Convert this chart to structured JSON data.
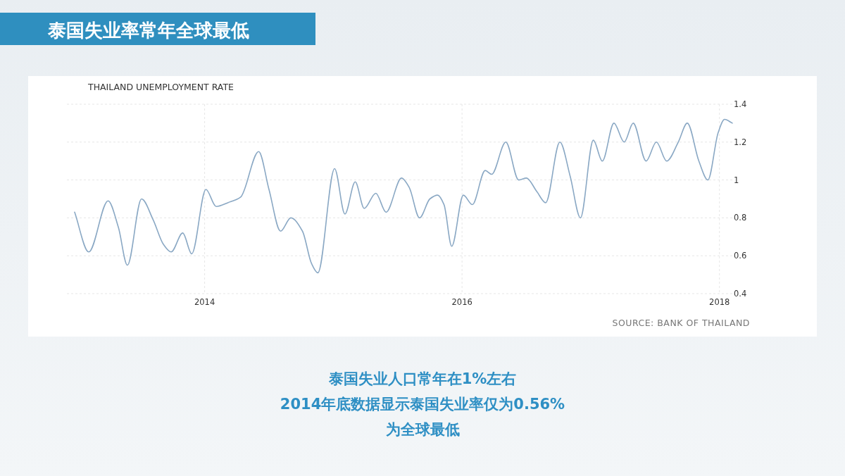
{
  "chart_data": {
    "type": "line",
    "title": "泰国失业率常年全球最低",
    "subtitle": "THAILAND UNEMPLOYMENT RATE",
    "x": [
      2012.99,
      2013.1,
      2013.25,
      2013.33,
      2013.4,
      2013.51,
      2013.6,
      2013.68,
      2013.74,
      2013.83,
      2013.9,
      2014.01,
      2014.09,
      2014.18,
      2014.28,
      2014.42,
      2014.5,
      2014.59,
      2014.67,
      2014.76,
      2014.83,
      2014.88,
      2015.01,
      2015.09,
      2015.17,
      2015.24,
      2015.33,
      2015.41,
      2015.53,
      2015.59,
      2015.67,
      2015.75,
      2015.81,
      2015.86,
      2015.92,
      2016.01,
      2016.08,
      2016.18,
      2016.23,
      2016.34,
      2016.44,
      2016.5,
      2016.58,
      2016.65,
      2016.76,
      2016.84,
      2016.92,
      2017.02,
      2017.09,
      2017.18,
      2017.26,
      2017.33,
      2017.43,
      2017.51,
      2017.59,
      2017.68,
      2017.75,
      2017.84,
      2017.91,
      2017.99,
      2018.04,
      2018.1
    ],
    "series": [
      {
        "color": "#8aa8c4",
        "values": [
          0.83,
          0.62,
          0.89,
          0.75,
          0.55,
          0.9,
          0.79,
          0.66,
          0.62,
          0.72,
          0.61,
          0.95,
          0.86,
          0.88,
          0.91,
          1.15,
          0.95,
          0.73,
          0.8,
          0.73,
          0.56,
          0.51,
          1.06,
          0.82,
          0.99,
          0.85,
          0.93,
          0.83,
          1.01,
          0.96,
          0.8,
          0.9,
          0.92,
          0.87,
          0.65,
          0.92,
          0.87,
          1.05,
          1.03,
          1.2,
          1.0,
          1.01,
          0.94,
          0.88,
          1.2,
          1.02,
          0.8,
          1.21,
          1.1,
          1.3,
          1.2,
          1.3,
          1.1,
          1.2,
          1.1,
          1.2,
          1.3,
          1.1,
          1.0,
          1.25,
          1.32,
          1.3
        ]
      }
    ],
    "xlim": [
      2012.93,
      2018.1
    ],
    "xticks": [
      2014,
      2016,
      2018
    ],
    "ylim": [
      0.4,
      1.4
    ],
    "yticks": [
      0.4,
      0.6,
      0.8,
      1,
      1.2,
      1.4
    ],
    "grid": true,
    "marker": "none",
    "line_style": "solid",
    "annotations": [
      "SOURCE: BANK OF THAILAND",
      "泰国失业人口常年在1%左右",
      "2014年底数据显示泰国失业率仅为0.56%",
      "为全球最低"
    ]
  }
}
